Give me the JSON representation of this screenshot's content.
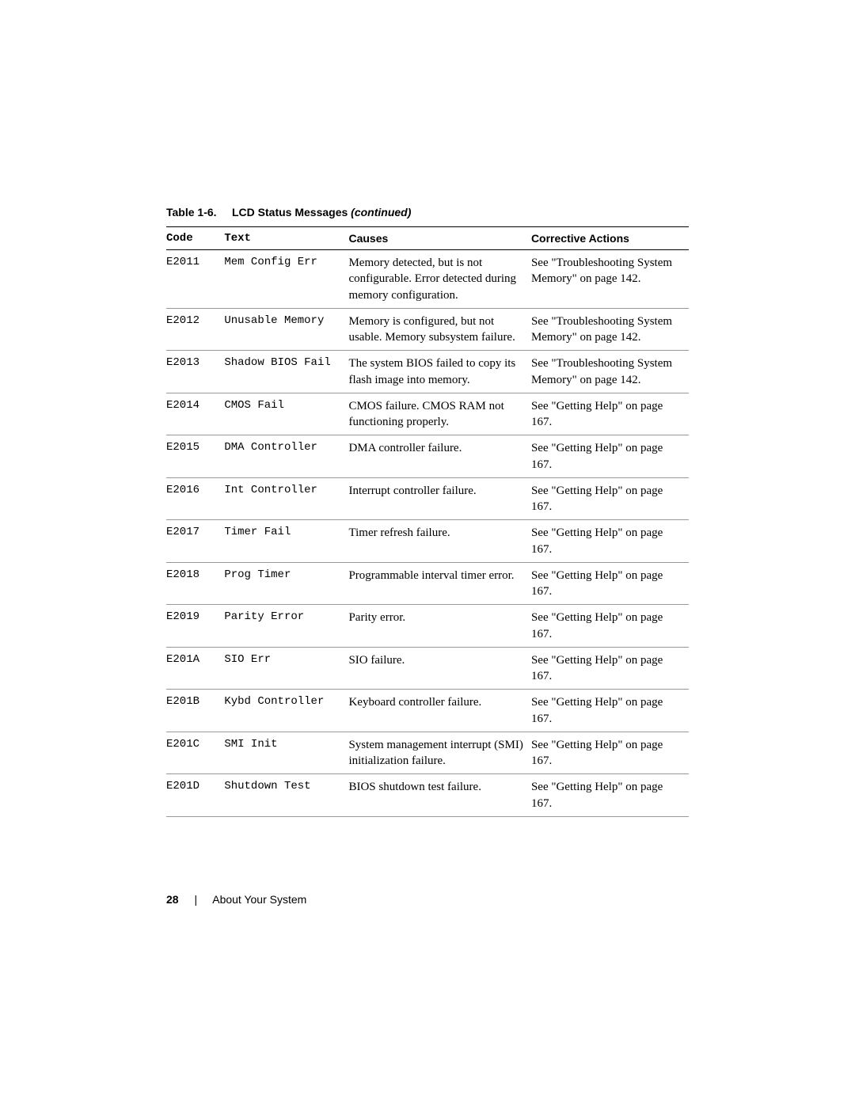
{
  "caption": {
    "prefix": "Table 1-6.",
    "title": "LCD Status Messages",
    "suffix": "(continued)"
  },
  "headers": {
    "code": "Code",
    "text": "Text",
    "causes": "Causes",
    "actions": "Corrective Actions"
  },
  "rows": [
    {
      "code": "E2011",
      "text": "Mem Config Err",
      "causes": "Memory detected, but is not configurable. Error detected during memory configuration.",
      "actions": "See \"Troubleshooting System Memory\" on page 142."
    },
    {
      "code": "E2012",
      "text": "Unusable Memory",
      "causes": "Memory is configured, but not usable. Memory subsystem failure.",
      "actions": "See \"Troubleshooting System Memory\" on page 142."
    },
    {
      "code": "E2013",
      "text": "Shadow BIOS Fail",
      "causes": "The system BIOS failed to copy its flash image into memory.",
      "actions": "See \"Troubleshooting System Memory\" on page 142."
    },
    {
      "code": "E2014",
      "text": "CMOS Fail",
      "causes": "CMOS failure. CMOS RAM not functioning properly.",
      "actions": "See \"Getting Help\" on page 167."
    },
    {
      "code": "E2015",
      "text": "DMA Controller",
      "causes": "DMA controller failure.",
      "actions": "See \"Getting Help\" on page 167."
    },
    {
      "code": "E2016",
      "text": "Int Controller",
      "causes": "Interrupt controller failure.",
      "actions": "See \"Getting Help\" on page 167."
    },
    {
      "code": "E2017",
      "text": "Timer Fail",
      "causes": "Timer refresh failure.",
      "actions": "See \"Getting Help\" on page 167."
    },
    {
      "code": "E2018",
      "text": "Prog Timer",
      "causes": "Programmable interval timer error.",
      "actions": "See \"Getting Help\" on page 167."
    },
    {
      "code": "E2019",
      "text": "Parity Error",
      "causes": "Parity error.",
      "actions": "See \"Getting Help\" on page 167."
    },
    {
      "code": "E201A",
      "text": "SIO Err",
      "causes": "SIO failure.",
      "actions": "See \"Getting Help\" on page 167."
    },
    {
      "code": "E201B",
      "text": "Kybd Controller",
      "causes": "Keyboard controller failure.",
      "actions": "See \"Getting Help\" on page 167."
    },
    {
      "code": "E201C",
      "text": "SMI Init",
      "causes": "System management interrupt (SMI) initialization failure.",
      "actions": "See \"Getting Help\" on page 167."
    },
    {
      "code": "E201D",
      "text": "Shutdown Test",
      "causes": "BIOS shutdown test failure.",
      "actions": "See \"Getting Help\" on page 167."
    }
  ],
  "column_widths": {
    "code": 70,
    "text": 150,
    "causes": 220,
    "actions": 190
  },
  "footer": {
    "page": "28",
    "section": "About Your System"
  },
  "typography": {
    "body_font": "Georgia, Times New Roman, serif",
    "mono_font": "Courier New, monospace",
    "sans_font": "Arial, Helvetica, sans-serif",
    "body_size_pt": 15,
    "mono_size_pt": 14,
    "caption_size_pt": 14
  },
  "colors": {
    "background": "#ffffff",
    "text": "#000000",
    "row_border": "#999999",
    "header_border": "#000000"
  }
}
